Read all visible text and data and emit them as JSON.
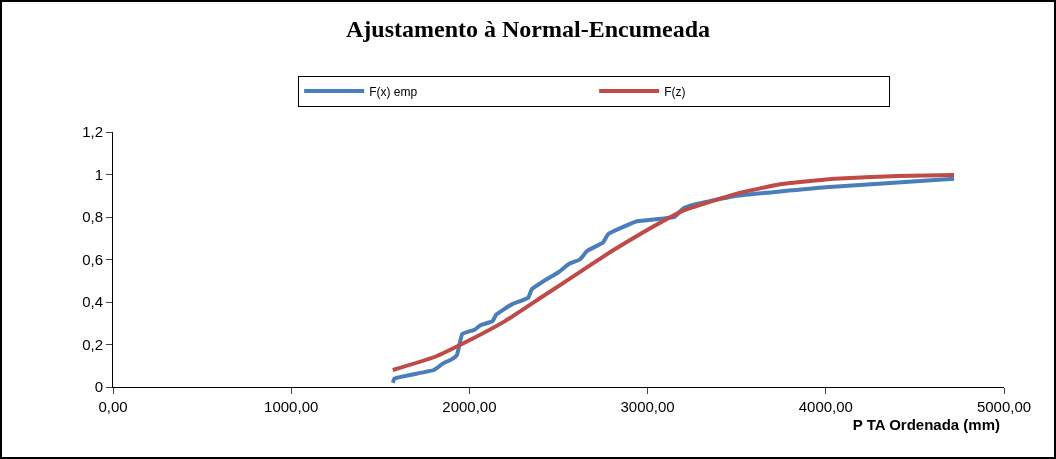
{
  "chart_data": {
    "type": "line",
    "title": "Ajustamento à Normal-Encumeada",
    "xlabel": "P TA Ordenada (mm)",
    "xlim": [
      0,
      5000
    ],
    "xticks": [
      {
        "value": 0,
        "label": "0,00"
      },
      {
        "value": 1000,
        "label": "1000,00"
      },
      {
        "value": 2000,
        "label": "2000,00"
      },
      {
        "value": 3000,
        "label": "3000,00"
      },
      {
        "value": 4000,
        "label": "4000,00"
      },
      {
        "value": 5000,
        "label": "5000,00"
      }
    ],
    "ylim": [
      0,
      1.2
    ],
    "yticks": [
      0,
      {
        "value": 0.2,
        "label": "0,2"
      },
      {
        "value": 0.4,
        "label": "0,4"
      },
      {
        "value": 0.6,
        "label": "0,6"
      },
      {
        "value": 0.8,
        "label": "0,8"
      },
      1,
      {
        "value": 1.2,
        "label": "1,2"
      }
    ],
    "grid": false,
    "legend": "top",
    "marker": "none",
    "line_style": "solid",
    "series": [
      {
        "name": "F(x) emp",
        "color": "#4a7ebb",
        "x": [
          1570,
          1580,
          1800,
          1850,
          1900,
          1930,
          1960,
          2030,
          2060,
          2130,
          2150,
          2240,
          2330,
          2350,
          2420,
          2500,
          2560,
          2620,
          2660,
          2750,
          2780,
          2940,
          3150,
          3200,
          3270,
          3500,
          4000,
          4720
        ],
        "values": [
          0.02,
          0.04,
          0.08,
          0.11,
          0.13,
          0.15,
          0.25,
          0.27,
          0.29,
          0.31,
          0.34,
          0.39,
          0.42,
          0.46,
          0.5,
          0.54,
          0.58,
          0.6,
          0.64,
          0.68,
          0.72,
          0.78,
          0.8,
          0.84,
          0.86,
          0.9,
          0.94,
          0.98
        ]
      },
      {
        "name": "F(z)",
        "color": "#be4b48",
        "x": [
          1570,
          1800,
          2000,
          2200,
          2400,
          2600,
          2800,
          3000,
          3200,
          3500,
          3750,
          4050,
          4400,
          4720
        ],
        "values": [
          0.08,
          0.14,
          0.22,
          0.31,
          0.42,
          0.53,
          0.64,
          0.74,
          0.83,
          0.91,
          0.955,
          0.98,
          0.993,
          0.998
        ]
      }
    ]
  }
}
